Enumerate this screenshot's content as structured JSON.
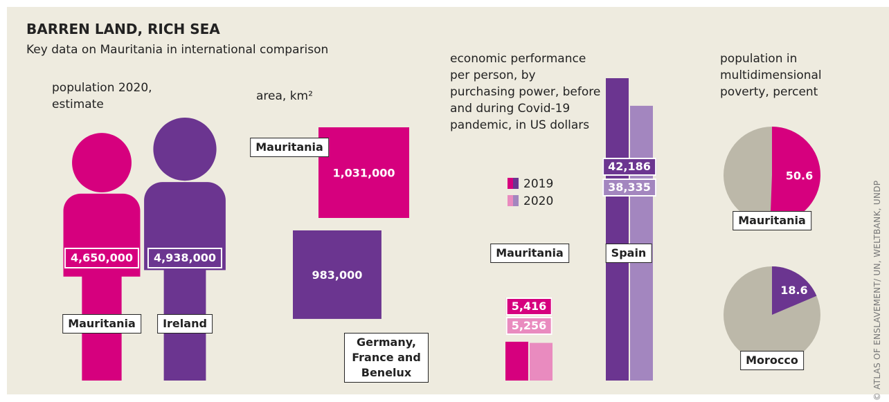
{
  "title": "BARREN LAND, RICH SEA",
  "subtitle": "Key data on Mauritania in international comparison",
  "credit": "© ATLAS OF ENSLAVEMENT/ UN, WELTBANK, UNDP",
  "chart_data": [
    {
      "type": "pictogram",
      "title": "population 2020, estimate",
      "categories": [
        "Mauritania",
        "Ireland"
      ],
      "values": [
        4650000,
        4938000
      ],
      "value_labels": [
        "4,650,000",
        "4,938,000"
      ],
      "colors": [
        "#d6007e",
        "#6b3590"
      ]
    },
    {
      "type": "square",
      "title": "area, km²",
      "categories": [
        "Mauritania",
        "Germany, France and Benelux"
      ],
      "values": [
        1031000,
        983000
      ],
      "value_labels": [
        "1,031,000",
        "983,000"
      ],
      "colors": [
        "#d6007e",
        "#6b3590"
      ]
    },
    {
      "type": "bar",
      "title": "economic performance per person, by purchasing power, before and during Covid-19 pandemic, in US dollars",
      "categories": [
        "Mauritania",
        "Spain"
      ],
      "series": [
        {
          "name": "2019",
          "colors": [
            "#d6007e",
            "#6b3590"
          ],
          "values": [
            5416,
            42186
          ],
          "value_labels": [
            "5,416",
            "42,186"
          ]
        },
        {
          "name": "2020",
          "colors": [
            "#e98bbf",
            "#a386bf"
          ],
          "values": [
            5256,
            38335
          ],
          "value_labels": [
            "5,256",
            "38,335"
          ]
        }
      ]
    },
    {
      "type": "pie",
      "title": "population in multidimensional poverty, percent",
      "categories": [
        "Mauritania",
        "Morocco"
      ],
      "values": [
        50.6,
        18.6
      ],
      "colors": [
        "#d6007e",
        "#6b3590"
      ],
      "rest_color": "#bcb8a9"
    }
  ]
}
